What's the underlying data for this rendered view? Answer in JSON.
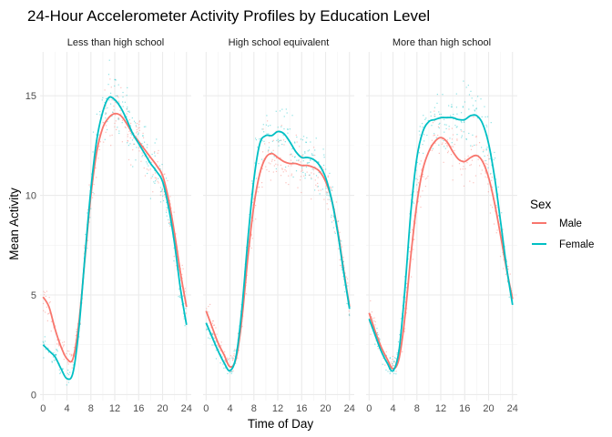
{
  "chart_data": {
    "type": "line",
    "title": "24-Hour Accelerometer Activity Profiles by Education Level",
    "xlabel": "Time of Day",
    "ylabel": "Mean Activity",
    "xlim": [
      -0.5,
      24.8
    ],
    "ylim": [
      -0.3,
      17.2
    ],
    "x_ticks": [
      0,
      4,
      8,
      12,
      16,
      20,
      24
    ],
    "y_ticks": [
      0,
      5,
      10,
      15
    ],
    "grid": true,
    "legend": {
      "title": "Sex",
      "position": "right",
      "entries": [
        {
          "label": "Male",
          "color": "#F8766D"
        },
        {
          "label": "Female",
          "color": "#00BFC4"
        }
      ]
    },
    "panels": [
      {
        "label": "Less than high school",
        "series": [
          {
            "name": "Male",
            "color": "#F8766D",
            "x": [
              0,
              1,
              2,
              3,
              4,
              5,
              6,
              7,
              8,
              9,
              10,
              11,
              12,
              13,
              14,
              15,
              16,
              17,
              18,
              19,
              20,
              21,
              22,
              23,
              24
            ],
            "y": [
              4.9,
              4.4,
              3.3,
              2.4,
              1.8,
              1.8,
              3.6,
              6.8,
              10.0,
              12.2,
              13.4,
              13.9,
              14.1,
              14.0,
              13.6,
              13.1,
              12.7,
              12.3,
              11.9,
              11.5,
              11.0,
              9.8,
              8.1,
              6.1,
              4.4
            ]
          },
          {
            "name": "Female",
            "color": "#00BFC4",
            "x": [
              0,
              1,
              2,
              3,
              4,
              5,
              6,
              7,
              8,
              9,
              10,
              11,
              12,
              13,
              14,
              15,
              16,
              17,
              18,
              19,
              20,
              21,
              22,
              23,
              24
            ],
            "y": [
              2.5,
              2.2,
              1.9,
              1.3,
              0.8,
              1.1,
              3.3,
              6.9,
              10.3,
              12.8,
              14.2,
              14.9,
              14.8,
              14.4,
              13.8,
              13.1,
              12.6,
              12.1,
              11.6,
              11.2,
              10.7,
              9.4,
              7.6,
              5.3,
              3.5
            ]
          }
        ]
      },
      {
        "label": "High school equivalent",
        "series": [
          {
            "name": "Male",
            "color": "#F8766D",
            "x": [
              0,
              1,
              2,
              3,
              4,
              5,
              6,
              7,
              8,
              9,
              10,
              11,
              12,
              13,
              14,
              15,
              16,
              17,
              18,
              19,
              20,
              21,
              22,
              23,
              24
            ],
            "y": [
              4.2,
              3.4,
              2.6,
              2.0,
              1.4,
              1.8,
              3.8,
              6.9,
              9.5,
              11.1,
              11.9,
              12.1,
              11.9,
              11.7,
              11.6,
              11.6,
              11.5,
              11.5,
              11.4,
              11.2,
              10.7,
              9.8,
              8.3,
              6.3,
              4.4
            ]
          },
          {
            "name": "Female",
            "color": "#00BFC4",
            "x": [
              0,
              1,
              2,
              3,
              4,
              5,
              6,
              7,
              8,
              9,
              10,
              11,
              12,
              13,
              14,
              15,
              16,
              17,
              18,
              19,
              20,
              21,
              22,
              23,
              24
            ],
            "y": [
              3.6,
              2.9,
              2.2,
              1.6,
              1.2,
              1.9,
              4.3,
              7.8,
              10.8,
              12.6,
              13.0,
              13.0,
              13.2,
              13.1,
              12.7,
              12.2,
              11.9,
              11.9,
              11.8,
              11.5,
              10.9,
              9.8,
              8.2,
              6.2,
              4.3
            ]
          }
        ]
      },
      {
        "label": "More than high school",
        "series": [
          {
            "name": "Male",
            "color": "#F8766D",
            "x": [
              0,
              1,
              2,
              3,
              4,
              5,
              6,
              7,
              8,
              9,
              10,
              11,
              12,
              13,
              14,
              15,
              16,
              17,
              18,
              19,
              20,
              21,
              22,
              23,
              24
            ],
            "y": [
              4.1,
              3.2,
              2.4,
              1.8,
              1.3,
              1.8,
              3.9,
              7.0,
              9.6,
              11.3,
              12.2,
              12.7,
              12.9,
              12.7,
              12.2,
              11.8,
              11.7,
              11.9,
              12.0,
              11.7,
              10.9,
              9.6,
              8.0,
              6.3,
              4.8
            ]
          },
          {
            "name": "Female",
            "color": "#00BFC4",
            "x": [
              0,
              1,
              2,
              3,
              4,
              5,
              6,
              7,
              8,
              9,
              10,
              11,
              12,
              13,
              14,
              15,
              16,
              17,
              18,
              19,
              20,
              21,
              22,
              23,
              24
            ],
            "y": [
              3.8,
              3.0,
              2.2,
              1.6,
              1.2,
              2.2,
              5.3,
              9.2,
              11.9,
              13.2,
              13.7,
              13.8,
              13.9,
              13.9,
              13.9,
              13.8,
              13.8,
              14.0,
              14.0,
              13.6,
              12.6,
              10.9,
              8.7,
              6.4,
              4.5
            ]
          }
        ]
      }
    ]
  }
}
